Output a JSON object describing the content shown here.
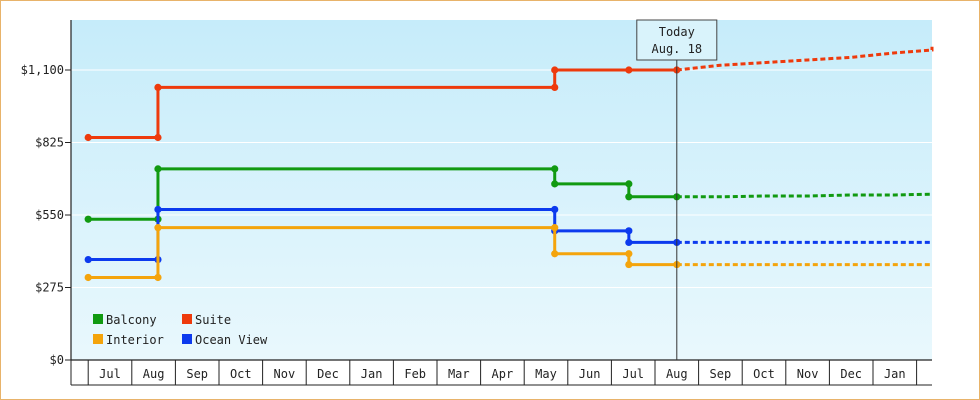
{
  "chart_data": {
    "type": "line",
    "y_ticks": [
      {
        "value": 0,
        "label": "$0"
      },
      {
        "value": 275,
        "label": "$275"
      },
      {
        "value": 550,
        "label": "$550"
      },
      {
        "value": 825,
        "label": "$825"
      },
      {
        "value": 1100,
        "label": "$1,100"
      }
    ],
    "ylim": [
      0,
      1100
    ],
    "x_labels": [
      "Jul",
      "Aug",
      "Sep",
      "Oct",
      "Nov",
      "Dec",
      "Jan",
      "Feb",
      "Mar",
      "Apr",
      "May",
      "Jun",
      "Jul",
      "Aug",
      "Sep",
      "Oct",
      "Nov",
      "Dec",
      "Jan"
    ],
    "today": {
      "line1": "Today",
      "line2": "Aug. 18",
      "x": 13.0
    },
    "legend": [
      {
        "name": "Balcony",
        "color": "#119a11"
      },
      {
        "name": "Suite",
        "color": "#ee3a0c"
      },
      {
        "name": "Interior",
        "color": "#f4a40c"
      },
      {
        "name": "Ocean View",
        "color": "#0c3aee"
      }
    ],
    "series": [
      {
        "name": "Suite",
        "color": "#ee3a0c",
        "points": [
          [
            -0.5,
            844
          ],
          [
            1.1,
            844
          ],
          [
            1.1,
            1034
          ],
          [
            10.2,
            1034
          ],
          [
            10.2,
            1100
          ],
          [
            11.9,
            1100
          ],
          [
            13.0,
            1100
          ]
        ],
        "forecast": [
          [
            13.0,
            1100
          ],
          [
            14.0,
            1118
          ],
          [
            15.0,
            1128
          ],
          [
            16.0,
            1138
          ],
          [
            17.0,
            1148
          ],
          [
            18.0,
            1165
          ],
          [
            19.0,
            1176
          ],
          [
            20.0,
            1188
          ]
        ]
      },
      {
        "name": "Balcony",
        "color": "#119a11",
        "points": [
          [
            -0.5,
            534
          ],
          [
            1.1,
            534
          ],
          [
            1.1,
            725
          ],
          [
            10.2,
            725
          ],
          [
            10.2,
            668
          ],
          [
            11.9,
            668
          ],
          [
            11.9,
            619
          ],
          [
            13.0,
            619
          ]
        ],
        "forecast": [
          [
            13.0,
            619
          ],
          [
            14.0,
            619
          ],
          [
            15.0,
            622
          ],
          [
            16.0,
            622
          ],
          [
            17.0,
            626
          ],
          [
            18.0,
            626
          ],
          [
            19.0,
            629
          ],
          [
            20.0,
            629
          ]
        ]
      },
      {
        "name": "Ocean View",
        "color": "#0c3aee",
        "points": [
          [
            -0.5,
            381
          ],
          [
            1.1,
            381
          ],
          [
            1.1,
            571
          ],
          [
            10.2,
            571
          ],
          [
            10.2,
            490
          ],
          [
            11.9,
            490
          ],
          [
            11.9,
            446
          ],
          [
            13.0,
            446
          ]
        ],
        "forecast": [
          [
            13.0,
            446
          ],
          [
            20.0,
            446
          ]
        ]
      },
      {
        "name": "Interior",
        "color": "#f4a40c",
        "points": [
          [
            -0.5,
            313
          ],
          [
            1.1,
            313
          ],
          [
            1.1,
            502
          ],
          [
            10.2,
            502
          ],
          [
            10.2,
            403
          ],
          [
            11.9,
            403
          ],
          [
            11.9,
            362
          ],
          [
            13.0,
            362
          ]
        ],
        "forecast": [
          [
            13.0,
            362
          ],
          [
            20.0,
            362
          ]
        ]
      }
    ]
  }
}
